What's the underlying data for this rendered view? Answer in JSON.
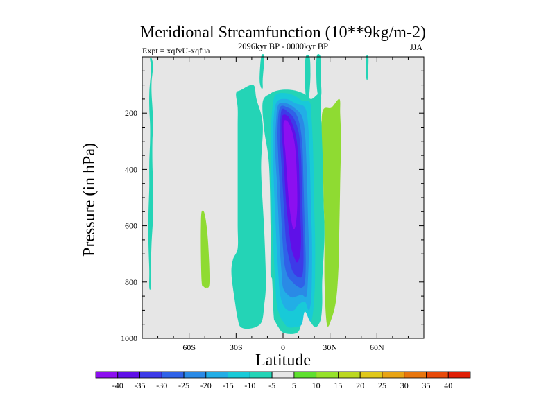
{
  "chart_data": {
    "type": "filled-contour",
    "title": "Meridional Streamfunction (10**9kg/m-2)",
    "subtitle": "2096kyr BP - 0000kyr BP",
    "left_label": "Expt = xqfvU-xqfua",
    "right_label": "JJA",
    "xlabel": "Latitude",
    "ylabel": "Pressure (in hPa)",
    "xlim": [
      -90,
      90
    ],
    "ylim": [
      1000,
      0
    ],
    "xticks": [
      {
        "value": -60,
        "label": "60S"
      },
      {
        "value": -30,
        "label": "30S"
      },
      {
        "value": 0,
        "label": "0"
      },
      {
        "value": 30,
        "label": "30N"
      },
      {
        "value": 60,
        "label": "60N"
      }
    ],
    "yticks": [
      {
        "value": 200,
        "label": "200"
      },
      {
        "value": 400,
        "label": "400"
      },
      {
        "value": 600,
        "label": "600"
      },
      {
        "value": 800,
        "label": "800"
      },
      {
        "value": 1000,
        "label": "1000"
      }
    ],
    "background_color": "#e6e6e6",
    "colorbar": {
      "labels": [
        "-40",
        "-35",
        "-30",
        "-25",
        "-20",
        "-15",
        "-10",
        "-5",
        "5",
        "10",
        "15",
        "20",
        "25",
        "30",
        "35",
        "40"
      ],
      "colors": [
        "#8c0ff0",
        "#5f10e8",
        "#3d3ae8",
        "#2f62e8",
        "#2a8ae6",
        "#22aee6",
        "#18cad8",
        "#24d4b6",
        "#e6e6e6",
        "#5ee02e",
        "#96e22a",
        "#bcd820",
        "#e0c81a",
        "#e8a414",
        "#e8760e",
        "#e84a0a",
        "#e01e06"
      ]
    },
    "regions": [
      {
        "level": "-5",
        "color": "#24d4b6",
        "points": [
          [
            -84,
            5
          ],
          [
            -83,
            30
          ],
          [
            -83.5,
            60
          ],
          [
            -84,
            90
          ],
          [
            -84,
            130
          ],
          [
            -83.5,
            180
          ],
          [
            -83,
            240
          ],
          [
            -83.5,
            300
          ],
          [
            -83.5,
            380
          ],
          [
            -83,
            460
          ],
          [
            -83,
            560
          ],
          [
            -84,
            660
          ],
          [
            -84.5,
            760
          ],
          [
            -84.5,
            820
          ],
          [
            -85.5,
            820
          ],
          [
            -85.5,
            760
          ],
          [
            -86,
            660
          ],
          [
            -86,
            560
          ],
          [
            -85.5,
            460
          ],
          [
            -85.5,
            380
          ],
          [
            -85,
            300
          ],
          [
            -85,
            240
          ],
          [
            -85.5,
            180
          ],
          [
            -85.5,
            130
          ],
          [
            -85,
            90
          ],
          [
            -84.5,
            60
          ],
          [
            -84.5,
            30
          ],
          [
            -85,
            5
          ]
        ]
      },
      {
        "level": "-5",
        "color": "#24d4b6",
        "points": [
          [
            -19,
            100
          ],
          [
            -17,
            150
          ],
          [
            -13,
            240
          ],
          [
            -14,
            400
          ],
          [
            -12,
            620
          ],
          [
            -11,
            800
          ],
          [
            -12,
            880
          ],
          [
            -14,
            945
          ],
          [
            -21,
            965
          ],
          [
            -27,
            960
          ],
          [
            -29,
            930
          ],
          [
            -31,
            860
          ],
          [
            -33,
            770
          ],
          [
            -32,
            720
          ],
          [
            -29,
            680
          ],
          [
            -29,
            600
          ],
          [
            -29,
            500
          ],
          [
            -29,
            420
          ],
          [
            -29,
            320
          ],
          [
            -29,
            240
          ],
          [
            -29,
            180
          ],
          [
            -30,
            130
          ],
          [
            -27,
            118
          ]
        ]
      },
      {
        "level": "-5",
        "color": "#24d4b6",
        "points": [
          [
            -13,
            160
          ],
          [
            -8,
            130
          ],
          [
            -2,
            118
          ],
          [
            6,
            118
          ],
          [
            13,
            130
          ],
          [
            18,
            150
          ],
          [
            24,
            130
          ],
          [
            24,
            200
          ],
          [
            25,
            260
          ],
          [
            25.5,
            380
          ],
          [
            26,
            520
          ],
          [
            26.5,
            620
          ],
          [
            26,
            700
          ],
          [
            25,
            800
          ],
          [
            25,
            880
          ],
          [
            24,
            935
          ],
          [
            21,
            960
          ],
          [
            18,
            945
          ],
          [
            14,
            905
          ],
          [
            12,
            940
          ],
          [
            10,
            975
          ],
          [
            6,
            985
          ],
          [
            0,
            980
          ],
          [
            -3,
            960
          ],
          [
            -5,
            940
          ],
          [
            -6,
            920
          ],
          [
            -7,
            790
          ],
          [
            -8,
            780
          ],
          [
            -8,
            600
          ],
          [
            -9,
            380
          ],
          [
            -12,
            260
          ]
        ]
      },
      {
        "level": "-5",
        "color": "#24d4b6",
        "points": [
          [
            -14,
            0
          ],
          [
            -12,
            0
          ],
          [
            -13,
            80
          ],
          [
            -13,
            110
          ],
          [
            -14,
            110
          ],
          [
            -15,
            80
          ]
        ]
      },
      {
        "level": "-5",
        "color": "#24d4b6",
        "points": [
          [
            14.5,
            0
          ],
          [
            17,
            0
          ],
          [
            17.5,
            60
          ],
          [
            17,
            120
          ],
          [
            16,
            160
          ],
          [
            14.5,
            140
          ],
          [
            14,
            60
          ]
        ]
      },
      {
        "level": "-5",
        "color": "#24d4b6",
        "points": [
          [
            21.5,
            0
          ],
          [
            24,
            0
          ],
          [
            24,
            60
          ],
          [
            24.5,
            130
          ],
          [
            23,
            150
          ],
          [
            21.5,
            100
          ]
        ]
      },
      {
        "level": "-5",
        "color": "#24d4b6",
        "points": [
          [
            53,
            0
          ],
          [
            54.5,
            0
          ],
          [
            54.5,
            40
          ],
          [
            54,
            80
          ],
          [
            53.2,
            75
          ],
          [
            53,
            40
          ]
        ]
      },
      {
        "level": "10",
        "color": "#8fdb32",
        "points": [
          [
            -52,
            550
          ],
          [
            -50,
            560
          ],
          [
            -48,
            650
          ],
          [
            -47,
            800
          ],
          [
            -49,
            820
          ],
          [
            -51,
            815
          ],
          [
            -52,
            800
          ],
          [
            -52.5,
            700
          ],
          [
            -52.5,
            600
          ]
        ]
      },
      {
        "level": "10",
        "color": "#8fdb32",
        "points": [
          [
            25,
            200
          ],
          [
            31,
            180
          ],
          [
            36,
            150
          ],
          [
            36.5,
            200
          ],
          [
            37,
            300
          ],
          [
            36.5,
            450
          ],
          [
            36,
            600
          ],
          [
            35.5,
            740
          ],
          [
            34,
            860
          ],
          [
            31,
            930
          ],
          [
            28,
            950
          ],
          [
            26.5,
            800
          ],
          [
            26.5,
            620
          ],
          [
            26,
            520
          ],
          [
            25.5,
            380
          ]
        ]
      },
      {
        "level": "-10",
        "color": "#18cad8",
        "points": [
          [
            -6,
            150
          ],
          [
            -3,
            130
          ],
          [
            3,
            130
          ],
          [
            8,
            140
          ],
          [
            12,
            155
          ],
          [
            17,
            160
          ],
          [
            18,
            200
          ],
          [
            19,
            300
          ],
          [
            19.5,
            400
          ],
          [
            20,
            550
          ],
          [
            20.5,
            650
          ],
          [
            20.5,
            750
          ],
          [
            20,
            850
          ],
          [
            18,
            940
          ],
          [
            14,
            905
          ],
          [
            12,
            950
          ],
          [
            8,
            960
          ],
          [
            3,
            960
          ],
          [
            0,
            940
          ],
          [
            -2,
            920
          ],
          [
            -4,
            880
          ],
          [
            -5,
            800
          ],
          [
            -6,
            700
          ],
          [
            -7,
            580
          ],
          [
            -7.5,
            450
          ],
          [
            -8,
            330
          ],
          [
            -7.5,
            230
          ]
        ]
      },
      {
        "level": "-15",
        "color": "#22aee6",
        "points": [
          [
            -4,
            160
          ],
          [
            2,
            150
          ],
          [
            8,
            165
          ],
          [
            14,
            180
          ],
          [
            16,
            240
          ],
          [
            17,
            350
          ],
          [
            17.5,
            450
          ],
          [
            18,
            560
          ],
          [
            18.5,
            650
          ],
          [
            18.5,
            760
          ],
          [
            18,
            860
          ],
          [
            16.5,
            900
          ],
          [
            14,
            870
          ],
          [
            10,
            880
          ],
          [
            7,
            900
          ],
          [
            3,
            900
          ],
          [
            0,
            880
          ],
          [
            -2,
            840
          ],
          [
            -3,
            770
          ],
          [
            -4,
            680
          ],
          [
            -5,
            560
          ],
          [
            -6,
            430
          ],
          [
            -6.5,
            320
          ],
          [
            -6,
            220
          ]
        ]
      },
      {
        "level": "-20",
        "color": "#2a8ae6",
        "points": [
          [
            -3,
            170
          ],
          [
            2,
            165
          ],
          [
            7,
            180
          ],
          [
            12,
            210
          ],
          [
            14,
            270
          ],
          [
            15,
            380
          ],
          [
            15.5,
            480
          ],
          [
            16,
            580
          ],
          [
            16.5,
            680
          ],
          [
            16,
            780
          ],
          [
            15,
            850
          ],
          [
            12,
            845
          ],
          [
            9,
            850
          ],
          [
            6,
            855
          ],
          [
            3,
            845
          ],
          [
            0,
            820
          ],
          [
            -1,
            760
          ],
          [
            -2,
            680
          ],
          [
            -3,
            560
          ],
          [
            -4,
            440
          ],
          [
            -5,
            330
          ],
          [
            -4.5,
            230
          ]
        ]
      },
      {
        "level": "-25",
        "color": "#2f62e8",
        "points": [
          [
            -2,
            180
          ],
          [
            3,
            180
          ],
          [
            8,
            200
          ],
          [
            11,
            250
          ],
          [
            12.5,
            330
          ],
          [
            13,
            430
          ],
          [
            13.5,
            530
          ],
          [
            14,
            630
          ],
          [
            14.5,
            720
          ],
          [
            14,
            800
          ],
          [
            12,
            820
          ],
          [
            9,
            815
          ],
          [
            6,
            800
          ],
          [
            3,
            780
          ],
          [
            1,
            740
          ],
          [
            0,
            680
          ],
          [
            -1,
            580
          ],
          [
            -2,
            470
          ],
          [
            -3,
            360
          ],
          [
            -3.5,
            260
          ]
        ]
      },
      {
        "level": "-30",
        "color": "#3d3ae8",
        "points": [
          [
            -1,
            190
          ],
          [
            3,
            195
          ],
          [
            7,
            220
          ],
          [
            10,
            270
          ],
          [
            11.5,
            350
          ],
          [
            12,
            450
          ],
          [
            12.5,
            550
          ],
          [
            13,
            650
          ],
          [
            13,
            740
          ],
          [
            12,
            780
          ],
          [
            9,
            780
          ],
          [
            6,
            760
          ],
          [
            4,
            720
          ],
          [
            2,
            660
          ],
          [
            1,
            580
          ],
          [
            0,
            480
          ],
          [
            -1,
            380
          ],
          [
            -2,
            280
          ]
        ]
      },
      {
        "level": "-35",
        "color": "#5f10e8",
        "points": [
          [
            -0.5,
            210
          ],
          [
            3,
            210
          ],
          [
            6,
            240
          ],
          [
            8.5,
            290
          ],
          [
            10,
            370
          ],
          [
            10.5,
            460
          ],
          [
            11,
            560
          ],
          [
            11.5,
            640
          ],
          [
            11,
            700
          ],
          [
            9,
            730
          ],
          [
            7,
            710
          ],
          [
            5,
            670
          ],
          [
            3.5,
            600
          ],
          [
            2,
            520
          ],
          [
            1,
            430
          ],
          [
            0,
            330
          ],
          [
            -1,
            260
          ]
        ]
      },
      {
        "level": "-40",
        "color": "#8c0ff0",
        "points": [
          [
            0.5,
            230
          ],
          [
            3,
            230
          ],
          [
            5.5,
            260
          ],
          [
            7.5,
            310
          ],
          [
            8.5,
            380
          ],
          [
            9,
            460
          ],
          [
            9,
            540
          ],
          [
            8,
            600
          ],
          [
            6.5,
            610
          ],
          [
            5,
            570
          ],
          [
            3.5,
            500
          ],
          [
            2.5,
            420
          ],
          [
            1.5,
            340
          ],
          [
            0.5,
            280
          ]
        ]
      }
    ]
  }
}
